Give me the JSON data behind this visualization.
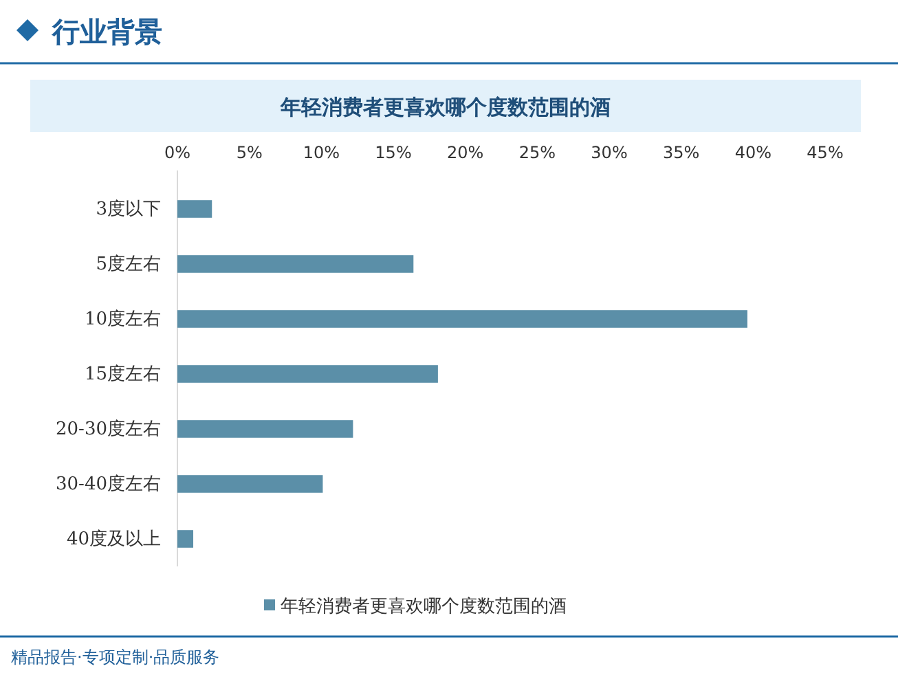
{
  "chart_data": {
    "type": "bar",
    "orientation": "horizontal",
    "title": "年轻消费者更喜欢哪个度数范围的酒",
    "subtitle": "行业背景",
    "categories": [
      "3度以下",
      "5度左右",
      "10度左右",
      "15度左右",
      "20-30度左右",
      "30-40度左右",
      "40度及以上"
    ],
    "series": [
      {
        "name": "年轻消费者更喜欢哪个度数范围的酒",
        "color": "#5b8fa8",
        "values": [
          2.4,
          16.4,
          39.6,
          18.1,
          12.2,
          10.1,
          1.1
        ]
      }
    ],
    "xlim": [
      0,
      45
    ],
    "xticks": [
      {
        "value": 0,
        "label": "0%"
      },
      {
        "value": 5,
        "label": "5%"
      },
      {
        "value": 10,
        "label": "10%"
      },
      {
        "value": 15,
        "label": "15%"
      },
      {
        "value": 20,
        "label": "20%"
      },
      {
        "value": 25,
        "label": "25%"
      },
      {
        "value": 30,
        "label": "30%"
      },
      {
        "value": 35,
        "label": "35%"
      },
      {
        "value": 40,
        "label": "40%"
      },
      {
        "value": 45,
        "label": "45%"
      }
    ],
    "grid": false,
    "legend": "bottom",
    "annotations": [
      "精品报告·专项定制·品质服务"
    ]
  }
}
